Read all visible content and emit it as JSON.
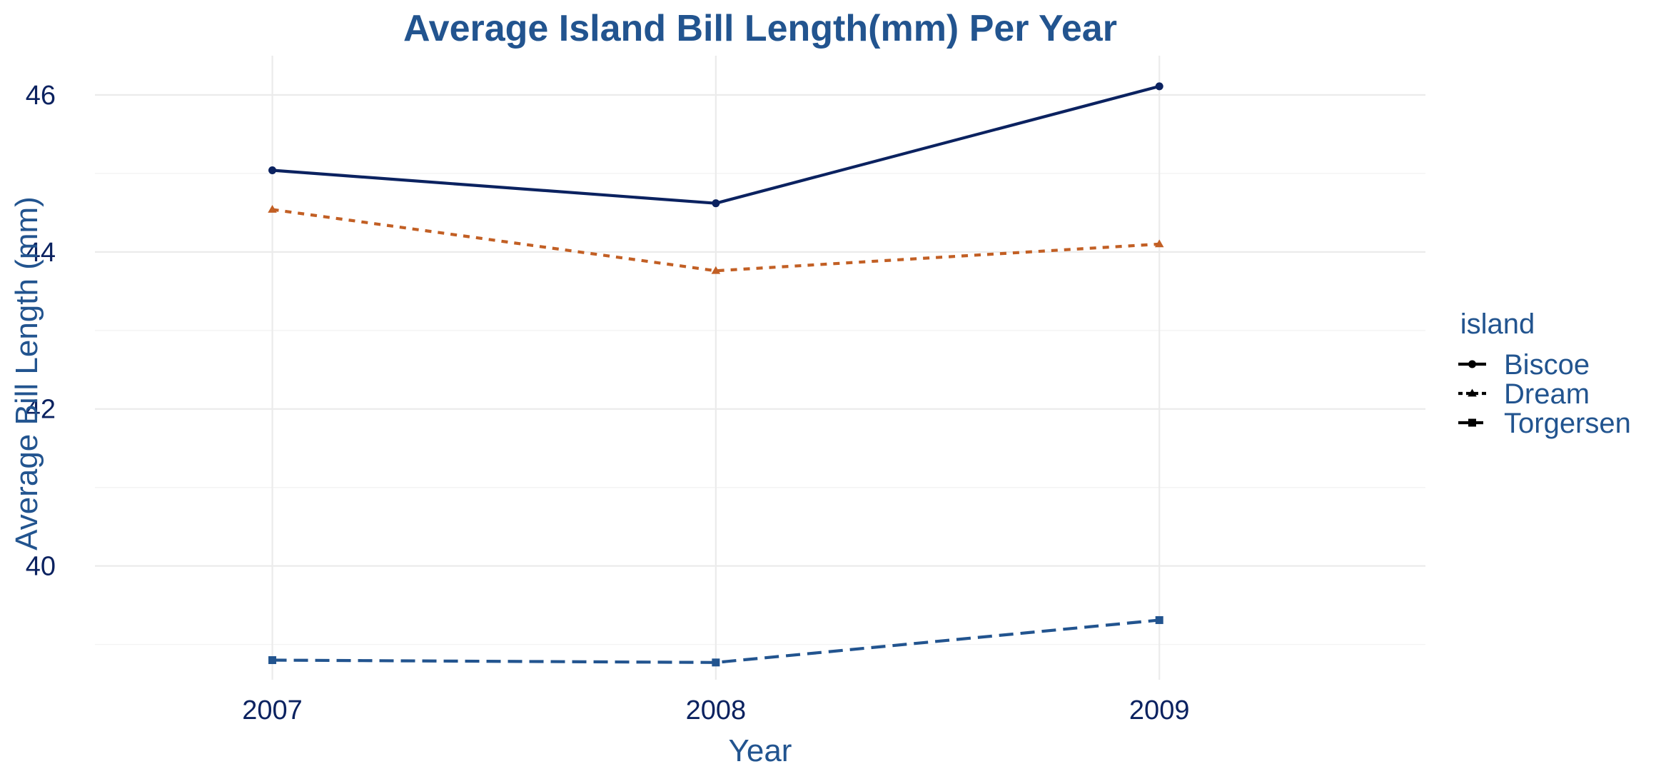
{
  "chart_data": {
    "type": "line",
    "title": "Average Island Bill Length(mm) Per Year",
    "xlabel": "Year",
    "ylabel": "Average Bill Length (mm)",
    "x": [
      2007,
      2008,
      2009
    ],
    "x_tick_labels": [
      "2007",
      "2008",
      "2009"
    ],
    "y_ticks": [
      40,
      42,
      44,
      46
    ],
    "y_tick_labels": [
      "40",
      "42",
      "44",
      "46"
    ],
    "xlim": [
      2006.6,
      2009.6
    ],
    "ylim": [
      38.55,
      46.5
    ],
    "grid": true,
    "legend": {
      "title": "island",
      "position": "right"
    },
    "series": [
      {
        "name": "Biscoe",
        "values": [
          45.04,
          44.62,
          46.11
        ],
        "color": "#0b2260",
        "line": "solid",
        "marker": "circle"
      },
      {
        "name": "Dream",
        "values": [
          44.54,
          43.76,
          44.1
        ],
        "color": "#c25f24",
        "line": "dotted",
        "marker": "triangle"
      },
      {
        "name": "Torgersen",
        "values": [
          38.8,
          38.77,
          39.31
        ],
        "color": "#22548f",
        "line": "dashed",
        "marker": "square"
      }
    ],
    "colors": {
      "title": "#22548f",
      "axis_title": "#22548f",
      "tick_label": "#0b2260",
      "grid_major": "#ebebeb",
      "grid_minor": "#f3f3f3",
      "legend_text": "#22548f",
      "legend_key": "#000000"
    }
  }
}
